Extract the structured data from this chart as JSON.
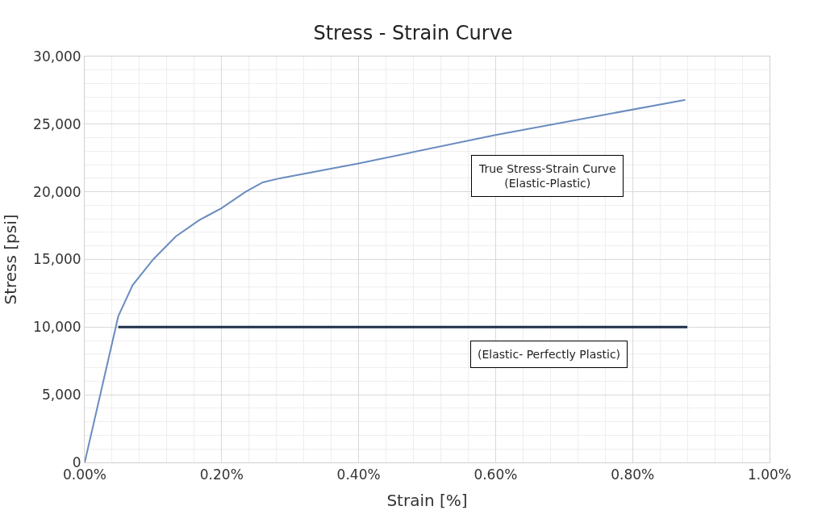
{
  "chart_data": {
    "type": "line",
    "title": "Stress - Strain Curve",
    "xlabel": "Strain [%]",
    "ylabel": "Stress [psi]",
    "series": [
      {
        "color": "#6a8cc0",
        "x": [
          0,
          0.049,
          0.07,
          0.1,
          0.133,
          0.167,
          0.2,
          0.235,
          0.26,
          0.285,
          0.4,
          0.6,
          0.877
        ],
        "values": [
          0,
          10800,
          13100,
          15000,
          16700,
          17900,
          18800,
          20000,
          20700,
          21000,
          22100,
          24200,
          26800
        ]
      },
      {
        "color": "#1f2f4a",
        "x": [
          0.049,
          0.88
        ],
        "values": [
          10000,
          10000
        ]
      }
    ],
    "annotations": [
      "True Stress-Strain Curve\n(Elastic-Plastic)",
      "(Elastic- Perfectly Plastic)"
    ],
    "xlim": [
      0,
      1
    ],
    "ylim": [
      0,
      30000
    ],
    "xticks": [
      {
        "value": 0,
        "label": "0.00%"
      },
      {
        "value": 0.2,
        "label": "0.20%"
      },
      {
        "value": 0.4,
        "label": "0.40%"
      },
      {
        "value": 0.6,
        "label": "0.60%"
      },
      {
        "value": 0.8,
        "label": "0.80%"
      },
      {
        "value": 1,
        "label": "1.00%"
      }
    ],
    "yticks": [
      {
        "value": 0,
        "label": "0"
      },
      {
        "value": 5000,
        "label": "5,000"
      },
      {
        "value": 10000,
        "label": "10,000"
      },
      {
        "value": 15000,
        "label": "15,000"
      },
      {
        "value": 20000,
        "label": "20,000"
      },
      {
        "value": 25000,
        "label": "25,000"
      },
      {
        "value": 30000,
        "label": "30,000"
      }
    ],
    "grid": true,
    "marker": "none",
    "line_style": "solid"
  }
}
